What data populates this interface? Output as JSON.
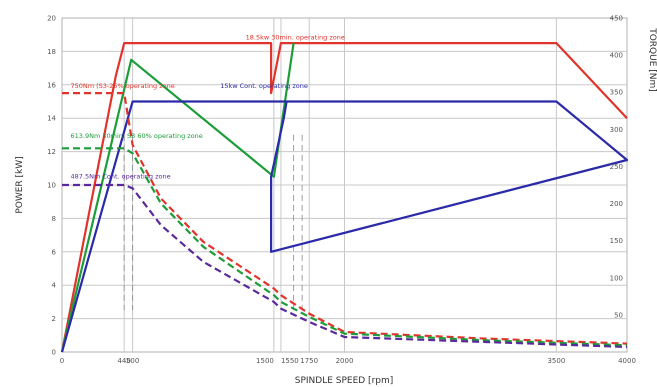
{
  "chart_data": {
    "type": "line",
    "title": "",
    "xlabel": "SPINDLE SPEED [rpm]",
    "ylabel_left": "POWER [kW]",
    "ylabel_right": "TORQUE [Nm]",
    "x_ticks": [
      "0",
      "440",
      "500",
      "1500",
      "1550",
      "1750",
      "2000",
      "3500",
      "4000"
    ],
    "y_left_ticks": [
      "0",
      "2",
      "4",
      "6",
      "8",
      "10",
      "12",
      "14",
      "16",
      "18",
      "20"
    ],
    "y_right_ticks": [
      "50",
      "100",
      "150",
      "200",
      "250",
      "300",
      "350",
      "400",
      "450"
    ],
    "xlim": [
      0,
      4000
    ],
    "ylim_left": [
      0,
      20
    ],
    "ylim_right": [
      0,
      450
    ],
    "grid": true,
    "annotations": [
      {
        "text": "18.5kw 30min. operating zone",
        "color": "#e0342c",
        "x": 1300,
        "y": 18.7
      },
      {
        "text": "750Nm (S3-25% operating zone",
        "color": "#e0342c",
        "x": 60,
        "y": 15.8
      },
      {
        "text": "15kw Cont. operating zone",
        "color": "#2b2aa8",
        "x": 1120,
        "y": 15.8
      },
      {
        "text": "613.9Nm 30min. S3 60% operating zone",
        "color": "#1d9d3a",
        "x": 60,
        "y": 12.8
      },
      {
        "text": "487.5Nm Cont. operating zone",
        "color": "#5a2a9c",
        "x": 60,
        "y": 10.4
      }
    ],
    "series": [
      {
        "color": "#e0342c",
        "style": "solid",
        "x": [
          0,
          380,
          440,
          1480,
          1480,
          1550,
          1570,
          3500,
          4000
        ],
        "y": [
          0,
          16.5,
          18.5,
          18.5,
          15.5,
          18.5,
          18.5,
          18.5,
          14
        ]
      },
      {
        "color": "#1d9d3a",
        "style": "solid",
        "x": [
          0,
          490,
          1500,
          1640
        ],
        "y": [
          0,
          17.5,
          10.5,
          18.5
        ]
      },
      {
        "color": "#2b2aa8",
        "style": "solid",
        "x": [
          0,
          500,
          3500,
          4000,
          1480,
          1480,
          1570,
          1590
        ],
        "y": [
          0,
          15.0,
          15.0,
          11.5,
          6.0,
          10.5,
          14.0,
          15.0
        ]
      },
      {
        "color": "#e0342c",
        "style": "dashed",
        "x": [
          0,
          440,
          500,
          700,
          1000,
          1500,
          1550,
          1750,
          2000,
          3000,
          4000
        ],
        "y": [
          15.5,
          15.5,
          12.4,
          9.2,
          6.6,
          3.8,
          3.4,
          2.3,
          1.2,
          0.8,
          0.5
        ]
      },
      {
        "color": "#1d9d3a",
        "style": "dashed",
        "x": [
          0,
          440,
          500,
          700,
          1000,
          1500,
          1550,
          1750,
          2000,
          3000,
          4000
        ],
        "y": [
          12.2,
          12.2,
          11.9,
          8.9,
          6.3,
          3.4,
          3.0,
          2.1,
          1.1,
          0.7,
          0.4
        ]
      },
      {
        "color": "#5a2a9c",
        "style": "dashed",
        "x": [
          0,
          440,
          500,
          700,
          1000,
          1500,
          1550,
          1750,
          2000,
          3000,
          4000
        ],
        "y": [
          10.0,
          10.0,
          9.8,
          7.6,
          5.4,
          3.0,
          2.6,
          1.8,
          0.9,
          0.6,
          0.3
        ]
      }
    ]
  }
}
